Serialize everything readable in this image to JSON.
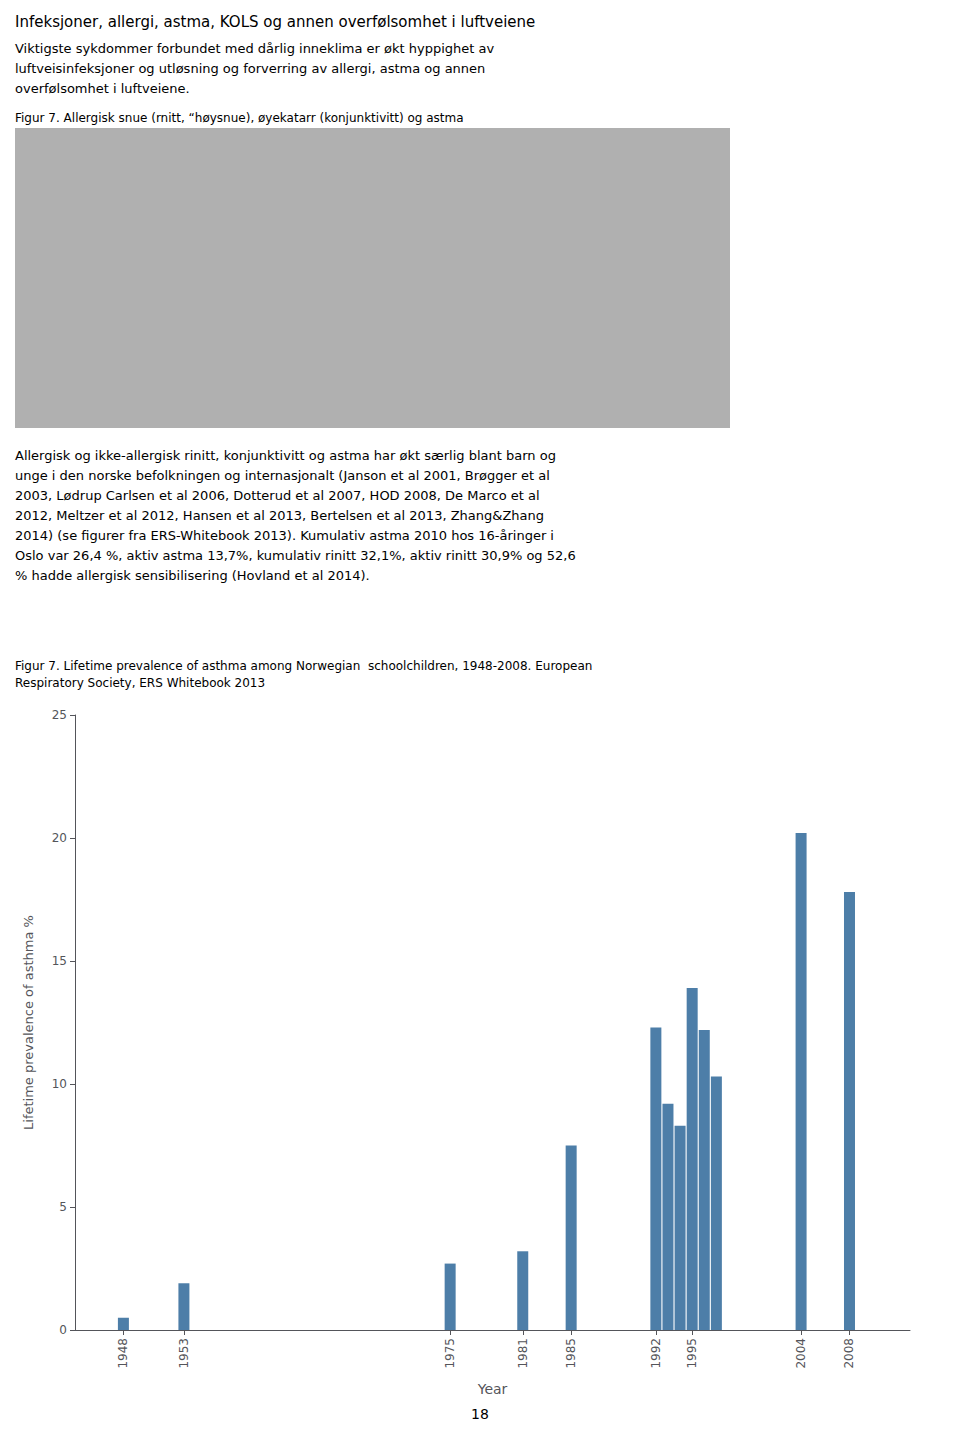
{
  "chart_data": {
    "type": "bar",
    "annotations": [
      "Infeksjoner, allergi, astma, KOLS og annen overfølsomhet i luftveiene",
      "Viktigste sykdommer forbundet med dårlig inneklima er økt hyppighet av\nluftveisinfeksjoner og utløsning og forverring av allergi, astma og annen\noverfølsomhet i luftveiene.",
      "Figur 7. Allergisk snue (rnitt, “høysnue), øyekatarr (konjunktivitt) og astma",
      "Allergisk og ikke-allergisk rinitt, konjunktivitt og astma har økt særlig blant barn og\nunge i den norske befolkningen og internasjonalt (Janson et al 2001, Brøgger et al\n2003, Lødrup Carlsen et al 2006, Dotterud et al 2007, HOD 2008, De Marco et al\n2012, Meltzer et al 2012, Hansen et al 2013, Bertelsen et al 2013, Zhang&Zhang\n2014) (se figurer fra ERS-Whitebook 2013). Kumulativ astma 2010 hos 16-åringer i\nOslo var 26,4 %, aktiv astma 13,7%, kumulativ rinitt 32,1%, aktiv rinitt 30,9% og 52,6\n% hadde allergisk sensibilisering (Hovland et al 2014).",
      "Figur 7. Lifetime prevalence of asthma among Norwegian  schoolchildren, 1948-2008. European",
      "Respiratory Society, ERS Whitebook 2013",
      "18"
    ],
    "x": [
      1948,
      1953,
      1975,
      1981,
      1985,
      1992,
      1993,
      1994,
      1995,
      1996,
      1997,
      2004,
      2008
    ],
    "values": [
      0.5,
      1.9,
      2.7,
      3.2,
      7.5,
      12.3,
      9.2,
      8.3,
      13.9,
      12.2,
      10.3,
      20.2,
      17.8
    ],
    "color": "#4d7ea8",
    "xlabel": "Year",
    "ylabel": "Lifetime prevalence of asthma %",
    "xlim": [
      1944,
      2013
    ],
    "xticks": [
      1948,
      1953,
      1975,
      1981,
      1985,
      1992,
      1995,
      2004,
      2008
    ],
    "ylim": [
      0,
      25
    ],
    "yticks": [
      0,
      5,
      10,
      15,
      20,
      25
    ],
    "grid": false
  }
}
